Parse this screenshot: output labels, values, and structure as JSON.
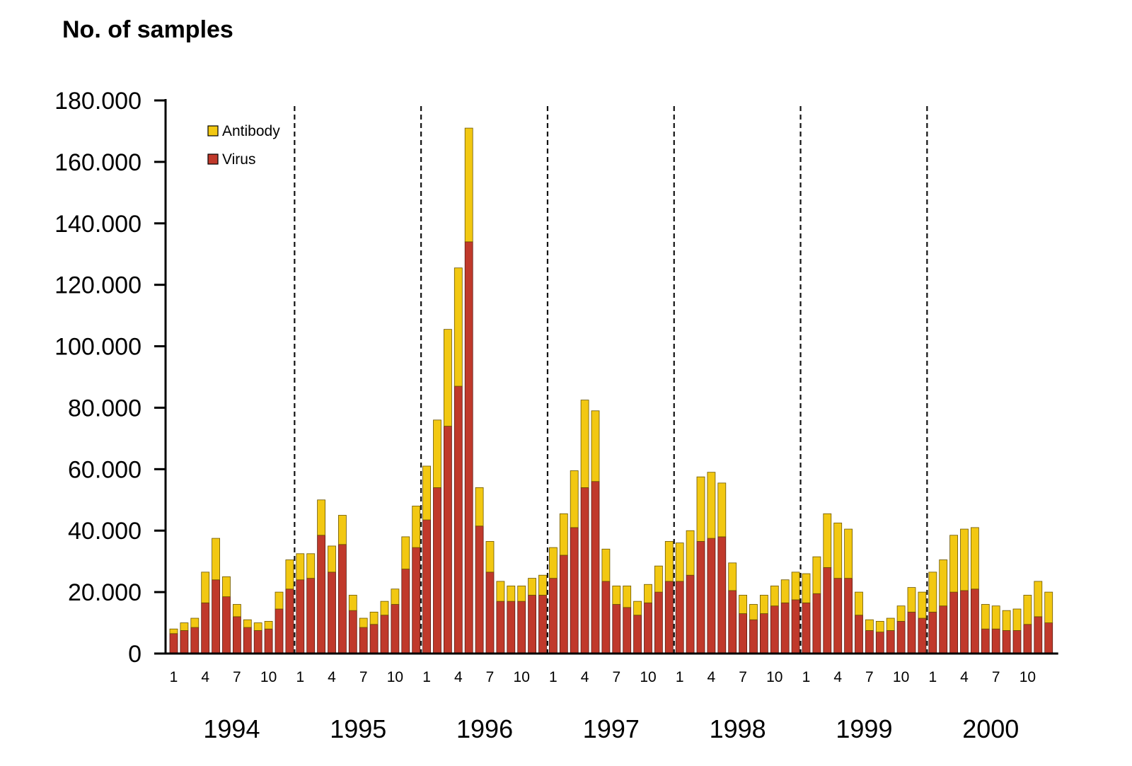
{
  "chart_data": {
    "type": "bar",
    "stacked": true,
    "ylabel": "No. of samples",
    "ylim": [
      0,
      180000
    ],
    "y_ticks": [
      0,
      20000,
      40000,
      60000,
      80000,
      100000,
      120000,
      140000,
      160000,
      180000
    ],
    "y_tick_labels": [
      "0",
      "20.000",
      "40.000",
      "60.000",
      "80.000",
      "100.000",
      "120.000",
      "140.000",
      "160.000",
      "180.000"
    ],
    "x_tick_labels": [
      "1",
      "4",
      "7",
      "10"
    ],
    "years": [
      "1994",
      "1995",
      "1996",
      "1997",
      "1998",
      "1999",
      "2000"
    ],
    "colors": {
      "Virus": "#c0392b",
      "Antibody": "#f2c812"
    },
    "legend": {
      "position": "top-left",
      "entries": [
        "Antibody",
        "Virus"
      ]
    },
    "series": [
      {
        "name": "Virus",
        "values": [
          6500,
          7500,
          8500,
          16500,
          24000,
          18500,
          12000,
          8500,
          7500,
          8000,
          14500,
          21000,
          24000,
          24500,
          38500,
          26500,
          35500,
          14000,
          8500,
          9500,
          12500,
          16000,
          27500,
          34500,
          43500,
          54000,
          74000,
          87000,
          134000,
          41500,
          26500,
          17000,
          17000,
          17000,
          19000,
          19000,
          24500,
          32000,
          41000,
          54000,
          56000,
          23500,
          16000,
          15000,
          12500,
          16500,
          20000,
          23500,
          23500,
          25500,
          36500,
          37500,
          38000,
          20500,
          13000,
          11000,
          13000,
          15500,
          16500,
          17500,
          16500,
          19500,
          28000,
          24500,
          24500,
          12500,
          7500,
          7000,
          7500,
          10500,
          13500,
          11500,
          13500,
          15500,
          20000,
          20500,
          21000,
          8000,
          8000,
          7500,
          7500,
          9500,
          12000,
          10000
        ]
      },
      {
        "name": "Antibody",
        "values": [
          1500,
          2500,
          3000,
          10000,
          13500,
          6500,
          4000,
          2500,
          2500,
          2500,
          5500,
          9500,
          8500,
          8000,
          11500,
          8500,
          9500,
          5000,
          3000,
          4000,
          4500,
          5000,
          10500,
          13500,
          17500,
          22000,
          31500,
          38500,
          37000,
          12500,
          10000,
          6500,
          5000,
          5000,
          5500,
          6500,
          10000,
          13500,
          18500,
          28500,
          23000,
          10500,
          6000,
          7000,
          4500,
          6000,
          8500,
          13000,
          12500,
          14500,
          21000,
          21500,
          17500,
          9000,
          6000,
          5000,
          6000,
          6500,
          7500,
          9000,
          9500,
          12000,
          17500,
          18000,
          16000,
          7500,
          3500,
          3500,
          4000,
          5000,
          8000,
          8500,
          13000,
          15000,
          18500,
          20000,
          20000,
          8000,
          7500,
          6500,
          7000,
          9500,
          11500,
          10000
        ]
      }
    ]
  }
}
